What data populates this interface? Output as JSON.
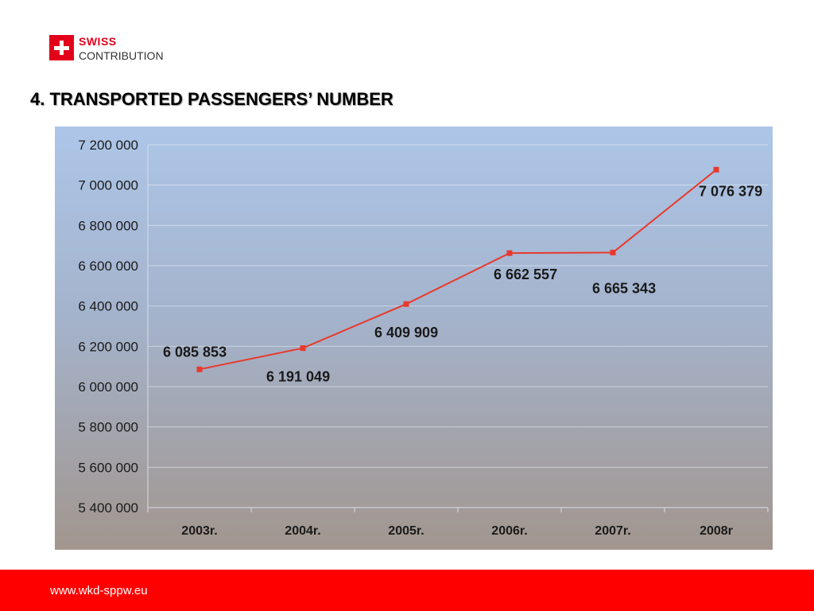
{
  "header": {
    "logo_line1": "SWISS",
    "logo_line2": "CONTRIBUTION",
    "brand_color": "#e3001b"
  },
  "slide": {
    "title": "4. TRANSPORTED PASSENGERS’ NUMBER"
  },
  "chart_data": {
    "type": "line",
    "categories": [
      "2003r.",
      "2004r.",
      "2005r.",
      "2006r.",
      "2007r.",
      "2008r"
    ],
    "values": [
      6085853,
      6191049,
      6409909,
      6662557,
      6665343,
      7076379
    ],
    "data_labels": [
      "6 085 853",
      "6 191 049",
      "6 409 909",
      "6 662 557",
      "6 665 343",
      "7 076 379"
    ],
    "ylim": [
      5400000,
      7200000
    ],
    "y_ticks": [
      5400000,
      5600000,
      5800000,
      6000000,
      6200000,
      6400000,
      6600000,
      6800000,
      7000000,
      7200000
    ],
    "y_tick_labels": [
      "5 400 000",
      "5 600 000",
      "5 800 000",
      "6 000 000",
      "6 200 000",
      "6 400 000",
      "6 600 000",
      "6 800 000",
      "7 000 000",
      "7 200 000"
    ],
    "grid": true,
    "legend": "none",
    "line_color": "#e8392c",
    "background_top": "#adc6e8",
    "background_bottom": "#a2968e"
  },
  "footer": {
    "url": "www.wkd-sppw.eu",
    "color": "#ff0000"
  }
}
